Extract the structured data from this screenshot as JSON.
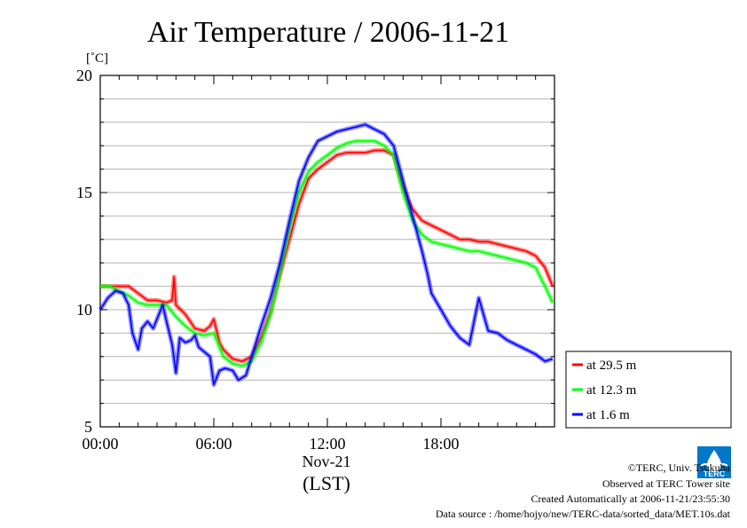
{
  "chart_data": {
    "type": "line",
    "title": "Air Temperature / 2006-11-21",
    "y_unit_label": "[˚C]",
    "ylim": [
      5,
      20
    ],
    "y_ticks": [
      {
        "value": 5,
        "label": "5"
      },
      {
        "value": 10,
        "label": "10"
      },
      {
        "value": 15,
        "label": "15"
      },
      {
        "value": 20,
        "label": "20"
      }
    ],
    "xlim": [
      0,
      24
    ],
    "x_ticks": [
      {
        "value": 0,
        "label": "00:00"
      },
      {
        "value": 6,
        "label": "06:00"
      },
      {
        "value": 12,
        "label": "12:00"
      },
      {
        "value": 18,
        "label": "18:00"
      }
    ],
    "x_sublabel": "Nov-21",
    "x_axis_label": "(LST)",
    "grid": true,
    "legend_position": "right",
    "series": [
      {
        "name": "at 29.5 m",
        "color": "#ff0000",
        "x": [
          0,
          0.5,
          1,
          1.5,
          2,
          2.5,
          3,
          3.5,
          3.8,
          3.9,
          4.0,
          4.5,
          5,
          5.5,
          5.8,
          6.0,
          6.3,
          6.5,
          7,
          7.5,
          8,
          8.5,
          9,
          9.5,
          10,
          10.5,
          11,
          11.5,
          12,
          12.5,
          13,
          13.5,
          14,
          14.5,
          15,
          15.5,
          16,
          16.5,
          17,
          17.5,
          18,
          18.5,
          19,
          19.5,
          20,
          20.5,
          21,
          21.5,
          22,
          22.5,
          23,
          23.5,
          23.9
        ],
        "values": [
          11.0,
          11.0,
          11.0,
          11.0,
          10.7,
          10.4,
          10.4,
          10.3,
          10.4,
          11.4,
          10.2,
          9.8,
          9.2,
          9.1,
          9.3,
          9.6,
          8.6,
          8.3,
          7.9,
          7.8,
          8.0,
          8.8,
          9.9,
          11.5,
          13.0,
          14.5,
          15.6,
          16.0,
          16.3,
          16.6,
          16.7,
          16.7,
          16.7,
          16.8,
          16.8,
          16.6,
          15.2,
          14.3,
          13.8,
          13.6,
          13.4,
          13.2,
          13.0,
          13.0,
          12.9,
          12.9,
          12.8,
          12.7,
          12.6,
          12.5,
          12.3,
          11.8,
          11.0
        ]
      },
      {
        "name": "at 12.3 m",
        "color": "#00ff00",
        "x": [
          0,
          0.5,
          1,
          1.5,
          2,
          2.5,
          3,
          3.5,
          4,
          4.5,
          5,
          5.5,
          6,
          6.5,
          7,
          7.5,
          8,
          8.5,
          9,
          9.5,
          10,
          10.5,
          11,
          11.5,
          12,
          12.5,
          13,
          13.5,
          14,
          14.5,
          15,
          15.5,
          16,
          16.5,
          17,
          17.5,
          18,
          18.5,
          19,
          19.5,
          20,
          20.5,
          21,
          21.5,
          22,
          22.5,
          23,
          23.5,
          23.9
        ],
        "values": [
          11.0,
          11.0,
          10.8,
          10.6,
          10.3,
          10.2,
          10.2,
          10.2,
          9.7,
          9.3,
          9.0,
          8.9,
          9.0,
          8.0,
          7.7,
          7.6,
          7.8,
          8.6,
          9.8,
          11.6,
          13.5,
          15.0,
          15.9,
          16.3,
          16.6,
          16.9,
          17.1,
          17.2,
          17.2,
          17.2,
          17.0,
          16.6,
          15.0,
          13.8,
          13.2,
          12.9,
          12.8,
          12.7,
          12.6,
          12.5,
          12.5,
          12.4,
          12.3,
          12.2,
          12.1,
          12.0,
          11.8,
          11.0,
          10.3
        ]
      },
      {
        "name": "at 1.6 m",
        "color": "#0000ff",
        "x": [
          0,
          0.4,
          0.8,
          1.2,
          1.5,
          1.7,
          2.0,
          2.2,
          2.5,
          2.8,
          3.0,
          3.3,
          3.5,
          3.8,
          4.0,
          4.2,
          4.5,
          4.8,
          5.0,
          5.2,
          5.5,
          5.8,
          6.0,
          6.3,
          6.6,
          7.0,
          7.3,
          7.7,
          8.0,
          8.5,
          9.0,
          9.5,
          10.0,
          10.5,
          11.0,
          11.5,
          12.0,
          12.5,
          13.0,
          13.5,
          14.0,
          14.5,
          15.0,
          15.5,
          16.0,
          16.5,
          17.0,
          17.3,
          17.5,
          18.0,
          18.5,
          19.0,
          19.5,
          20.0,
          20.5,
          21.0,
          21.5,
          22.0,
          22.5,
          23.0,
          23.5,
          23.9
        ],
        "values": [
          10.0,
          10.5,
          10.8,
          10.7,
          10.2,
          9.0,
          8.3,
          9.2,
          9.5,
          9.2,
          9.6,
          10.2,
          9.5,
          8.5,
          7.3,
          8.8,
          8.6,
          8.7,
          8.9,
          8.4,
          8.2,
          8.0,
          6.8,
          7.4,
          7.5,
          7.4,
          7.0,
          7.2,
          8.0,
          9.3,
          10.5,
          12.0,
          13.8,
          15.5,
          16.5,
          17.2,
          17.4,
          17.6,
          17.7,
          17.8,
          17.9,
          17.7,
          17.5,
          17.0,
          15.5,
          14.0,
          12.5,
          11.5,
          10.7,
          10.0,
          9.3,
          8.8,
          8.5,
          10.5,
          9.1,
          9.0,
          8.7,
          8.5,
          8.3,
          8.1,
          7.8,
          7.9
        ]
      }
    ]
  },
  "footer": {
    "copyright": "©TERC, Univ. Tsukuba",
    "observed": "Observed at TERC Tower site",
    "created": "Created Automatically at 2006-11-21/23:55:30",
    "source": "Data source : /home/hojyo/new/TERC-data/sorted_data/MET.10s.dat"
  },
  "logo": {
    "text": "TERC",
    "icon": "terc-logo-icon"
  }
}
